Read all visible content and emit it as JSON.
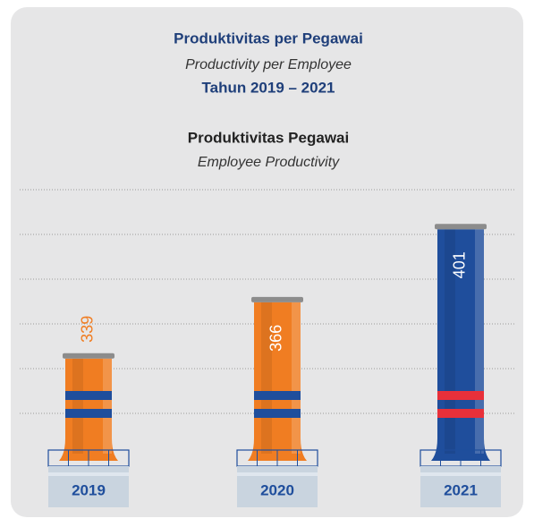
{
  "header": {
    "title": "Produktivitas per Pegawai",
    "subtitle": "Productivity per Employee",
    "period": "Tahun 2019 – 2021"
  },
  "chart_data": {
    "type": "bar",
    "title": "Produktivitas Pegawai",
    "subtitle": "Employee Productivity",
    "categories": [
      "2019",
      "2020",
      "2021"
    ],
    "values": [
      339,
      366,
      401
    ],
    "colors": [
      "#f07d22",
      "#f07d22",
      "#1f4e9c"
    ],
    "stripe_colors": [
      "#1f4e9c",
      "#1f4e9c",
      "#e8303a"
    ],
    "ylim": [
      290,
      420
    ],
    "grid": true
  }
}
